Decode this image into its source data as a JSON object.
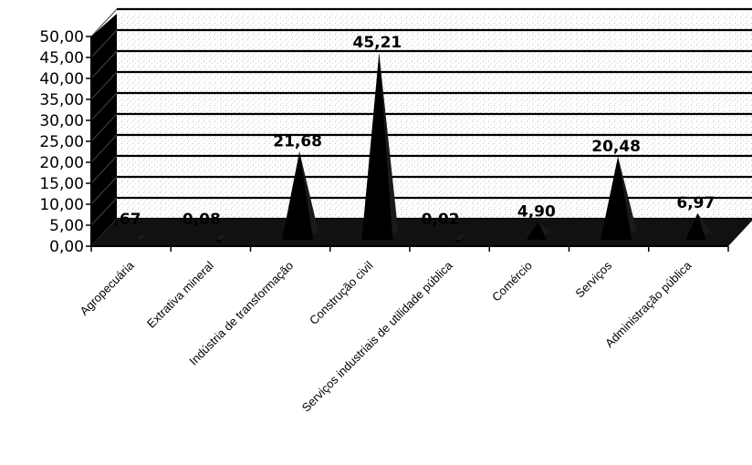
{
  "chart_data": {
    "type": "area",
    "style": "3d-peaks",
    "title": "",
    "xlabel": "",
    "ylabel": "",
    "ylim": [
      0,
      50
    ],
    "yticks": [
      "0,00",
      "5,00",
      "10,00",
      "15,00",
      "20,00",
      "25,00",
      "30,00",
      "35,00",
      "40,00",
      "45,00",
      "50,00"
    ],
    "categories": [
      "Agropecuária",
      "Extrativa mineral",
      "Indústria de transformação",
      "Construção civil",
      "Serviços industriais de utilidade pública",
      "Comércio",
      "Serviços",
      "Administração pública"
    ],
    "values": [
      0.67,
      0.08,
      21.68,
      45.21,
      0.02,
      4.9,
      20.48,
      6.97
    ],
    "data_labels": [
      "0,67",
      "0,08",
      "21,68",
      "45,21",
      "0,02",
      "4,90",
      "20,48",
      "6,97"
    ],
    "grid": true,
    "legend": "none",
    "colors": {
      "fill": "#000000",
      "wall": "#ffffff",
      "text": "#000000"
    }
  }
}
